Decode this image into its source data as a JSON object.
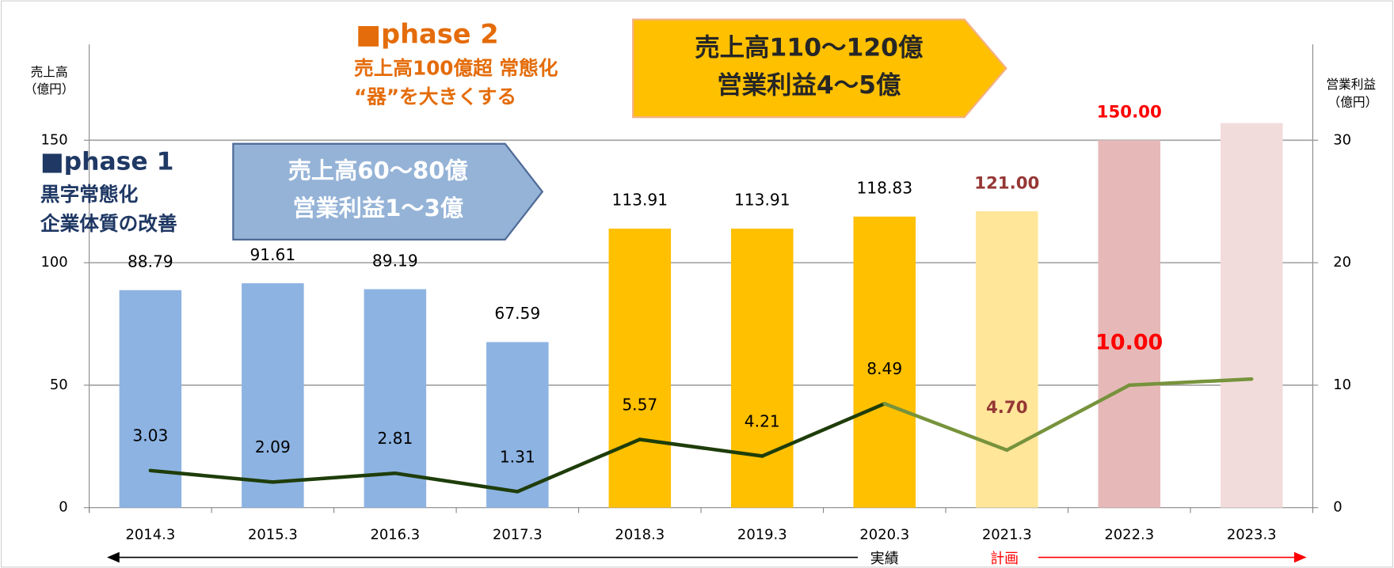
{
  "chart_data": {
    "type": "bar",
    "categories": [
      "2014.3",
      "2015.3",
      "2016.3",
      "2017.3",
      "2018.3",
      "2019.3",
      "2020.3",
      "2021.3",
      "2022.3",
      "2023.3"
    ],
    "values": [
      88.79,
      91.61,
      89.19,
      67.59,
      113.91,
      113.91,
      118.83,
      121,
      150,
      157
    ],
    "value_labels": [
      "88.79",
      "91.61",
      "89.19",
      "67.59",
      "113.91",
      "113.91",
      "118.83",
      "121.00",
      "150.00",
      null
    ],
    "colors": [
      "#8db3e2",
      "#8db3e2",
      "#8db3e2",
      "#8db3e2",
      "#ffc000",
      "#ffc000",
      "#ffc000",
      "#ffe699",
      "#e6b9b8",
      "#f2dcdb"
    ],
    "value_label_colors": [
      "#000000",
      "#000000",
      "#000000",
      "#000000",
      "#000000",
      "#000000",
      "#000000",
      "#953735",
      "#ff0000",
      "#000000"
    ],
    "series": [
      {
        "axis": "y2",
        "color": "#1e3d0a",
        "plan_color": "#77933c",
        "values": [
          3.03,
          2.09,
          2.81,
          1.31,
          5.57,
          4.21,
          8.49,
          4.7,
          10,
          10.5
        ],
        "value_labels": [
          "3.03",
          "2.09",
          "2.81",
          "1.31",
          "5.57",
          "4.21",
          "8.49",
          "4.70",
          "10.00",
          null
        ],
        "value_label_colors": [
          "#000000",
          "#000000",
          "#000000",
          "#000000",
          "#000000",
          "#000000",
          "#000000",
          "#953735",
          "#ff0000",
          "#000000"
        ]
      }
    ],
    "ylim": [
      0,
      150
    ],
    "yticks": [
      0,
      50,
      100,
      150
    ],
    "y2lim": [
      0,
      30
    ],
    "y2ticks": [
      0,
      10,
      20,
      30
    ],
    "grid": true,
    "ylabel": [
      "売上高",
      "（億円）"
    ],
    "y2label": [
      "営業利益",
      "（億円）"
    ],
    "phase1": {
      "title": "■phase 1",
      "lines": [
        "黒字常態化",
        "企業体質の改善"
      ],
      "box": [
        "売上高60～80億",
        "営業利益1～3億"
      ]
    },
    "phase2": {
      "title": "■phase 2",
      "lines": [
        "売上高100億超 常態化",
        "“器”を大きくする"
      ],
      "box": [
        "売上高110～120億",
        "営業利益4～5億"
      ]
    },
    "actual_label": "実績",
    "plan_label": "計画",
    "plan_from": "2020.3"
  }
}
